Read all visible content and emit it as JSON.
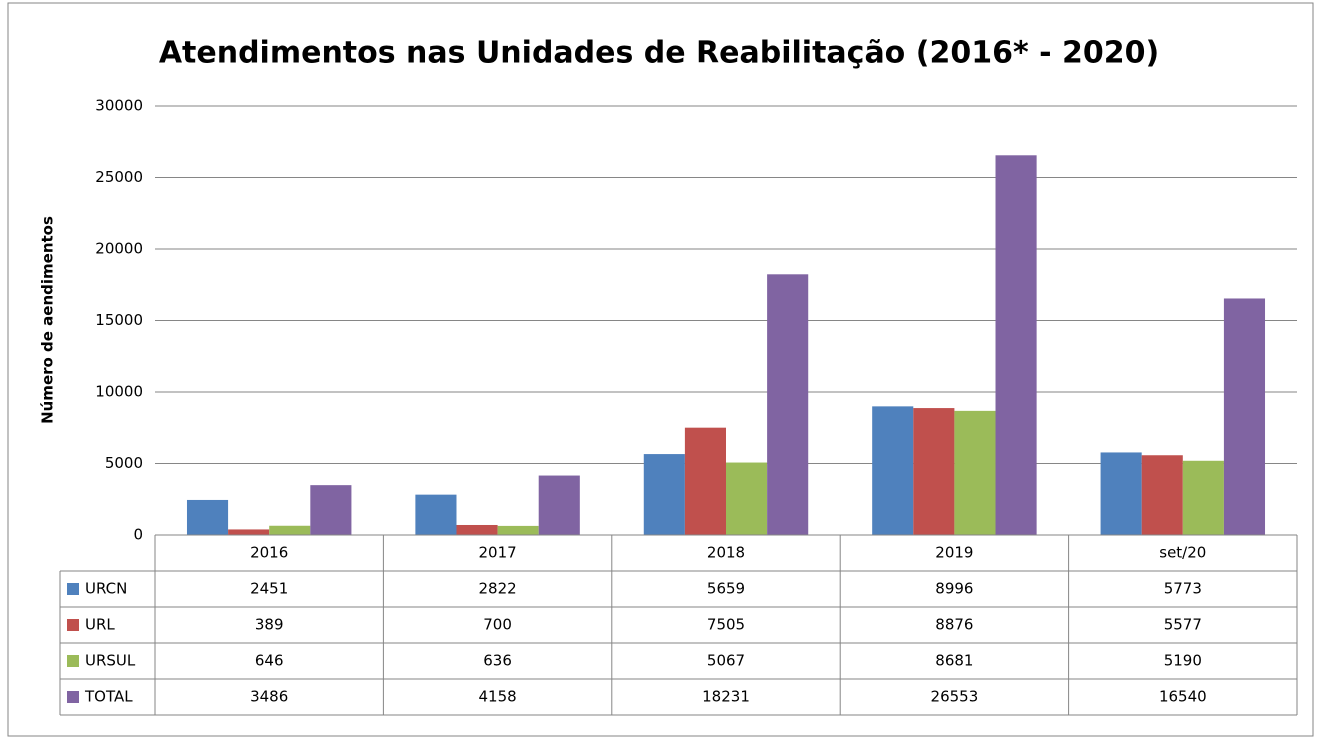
{
  "chart_data": {
    "type": "bar",
    "title": "Atendimentos nas Unidades de Reabilitação (2016* - 2020)",
    "y_label": "Número de aendimentos",
    "categories": [
      "2016",
      "2017",
      "2018",
      "2019",
      "set/20"
    ],
    "series": [
      {
        "name": "URCN",
        "color": "#4f81bd",
        "values": [
          2451,
          2822,
          5659,
          8996,
          5773
        ]
      },
      {
        "name": "URL",
        "color": "#c0504d",
        "values": [
          389,
          700,
          7505,
          8876,
          5577
        ]
      },
      {
        "name": "URSUL",
        "color": "#9bbb59",
        "values": [
          646,
          636,
          5067,
          8681,
          5190
        ]
      },
      {
        "name": "TOTAL",
        "color": "#8064a2",
        "values": [
          3486,
          4158,
          18231,
          26553,
          16540
        ]
      }
    ],
    "ylim": [
      0,
      30000
    ],
    "yticks": [
      0,
      5000,
      10000,
      15000,
      20000,
      25000,
      30000
    ],
    "grid": true,
    "data_table": true
  }
}
